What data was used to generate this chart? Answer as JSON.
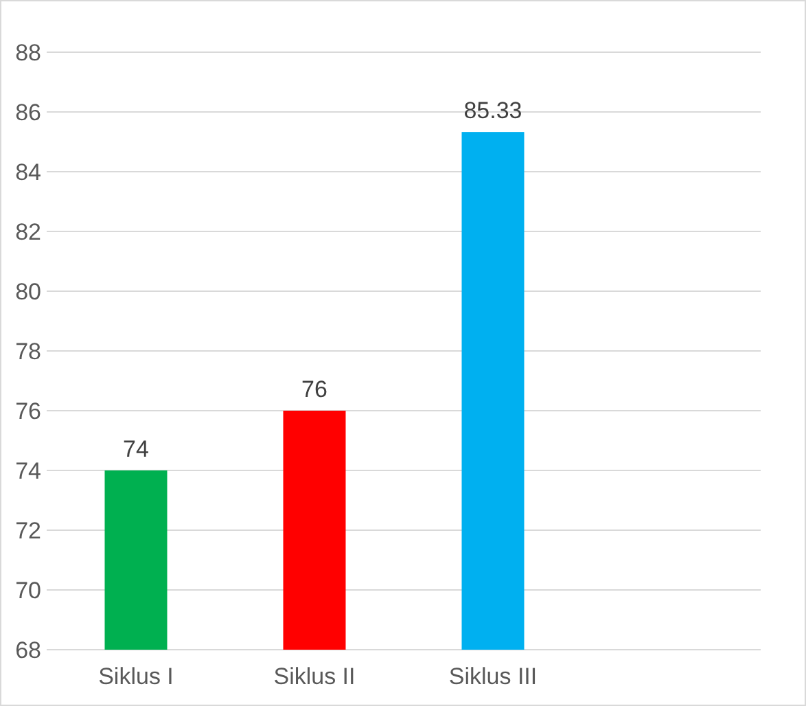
{
  "chart_data": {
    "type": "bar",
    "categories": [
      "Siklus I",
      "Siklus II",
      "Siklus III"
    ],
    "values": [
      74,
      76,
      85.33
    ],
    "colors": [
      "#00b050",
      "#ff0000",
      "#00b0f0"
    ],
    "ylim": [
      68,
      88
    ],
    "yticks": [
      68,
      70,
      72,
      74,
      76,
      78,
      80,
      82,
      84,
      86,
      88
    ],
    "grid": "y",
    "data_labels": true
  }
}
